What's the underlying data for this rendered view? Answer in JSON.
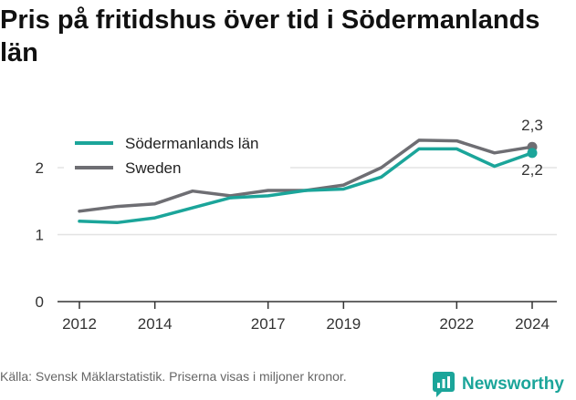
{
  "header": {
    "title": "Pris på fritidshus över tid i Södermanlands län"
  },
  "footer": {
    "source": "Källa: Svensk Mäklarstatistik. Priserna visas i miljoner kronor.",
    "brand": "Newsworthy"
  },
  "colors": {
    "series_1": "#1ba59a",
    "series_2": "#6e6e73",
    "brand": "#1ba59a",
    "grid": "#e3e3e3",
    "axis": "#333333"
  },
  "chart_data": {
    "type": "line",
    "title": "Pris på fritidshus över tid i Södermanlands län",
    "xlabel": "",
    "ylabel": "",
    "x": [
      2012,
      2013,
      2014,
      2015,
      2016,
      2017,
      2018,
      2019,
      2020,
      2021,
      2022,
      2023,
      2024
    ],
    "x_ticks": [
      "2012",
      "2014",
      "2017",
      "2019",
      "2022",
      "2024"
    ],
    "y_ticks": [
      "0",
      "1",
      "2"
    ],
    "ylim": [
      0,
      2.5
    ],
    "grid": true,
    "legend": "top-left",
    "series": [
      {
        "name": "Södermanlands län",
        "values": [
          1.2,
          1.18,
          1.25,
          1.4,
          1.55,
          1.58,
          1.66,
          1.68,
          1.86,
          2.28,
          2.28,
          2.02,
          2.22
        ],
        "end_label": "2,2"
      },
      {
        "name": "Sweden",
        "values": [
          1.35,
          1.42,
          1.46,
          1.65,
          1.58,
          1.66,
          1.66,
          1.74,
          2.0,
          2.41,
          2.4,
          2.22,
          2.31
        ],
        "end_label": "2,3"
      }
    ]
  }
}
